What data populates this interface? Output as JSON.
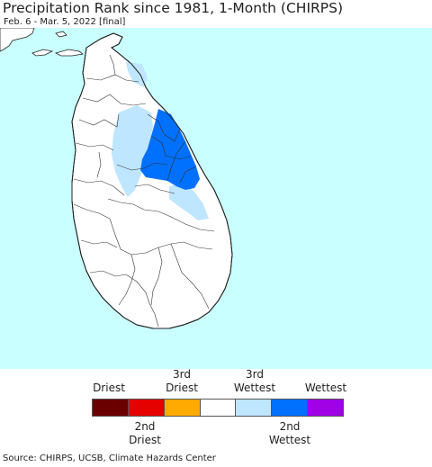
{
  "title": "Precipitation Rank since 1981, 1-Month (CHIRPS)",
  "subtitle": "Feb. 6 - Mar. 5, 2022 [final]",
  "map": {
    "ocean_color": "#c9ffff",
    "land_color": "#ffffff",
    "border_color": "#222222"
  },
  "legend": {
    "categories": [
      {
        "label": "Driest",
        "color": "#6b0000"
      },
      {
        "label": "2nd Driest",
        "color": "#e60000"
      },
      {
        "label": "3rd Driest",
        "color": "#ffaa00"
      },
      {
        "label": "",
        "color": "#ffffff"
      },
      {
        "label": "3rd Wettest",
        "color": "#bfe6ff"
      },
      {
        "label": "2nd Wettest",
        "color": "#0070ff"
      },
      {
        "label": "Wettest",
        "color": "#a000e6"
      }
    ],
    "top_labels": {
      "driest": "Driest",
      "third_driest_line1": "3rd",
      "third_driest_line2": "Driest",
      "third_wettest_line1": "3rd",
      "third_wettest_line2": "Wettest",
      "wettest": "Wettest"
    },
    "bottom_labels": {
      "second_driest_line1": "2nd",
      "second_driest_line2": "Driest",
      "second_wettest_line1": "2nd",
      "second_wettest_line2": "Wettest"
    }
  },
  "source": "Source: CHIRPS, UCSB, Climate Hazards Center"
}
